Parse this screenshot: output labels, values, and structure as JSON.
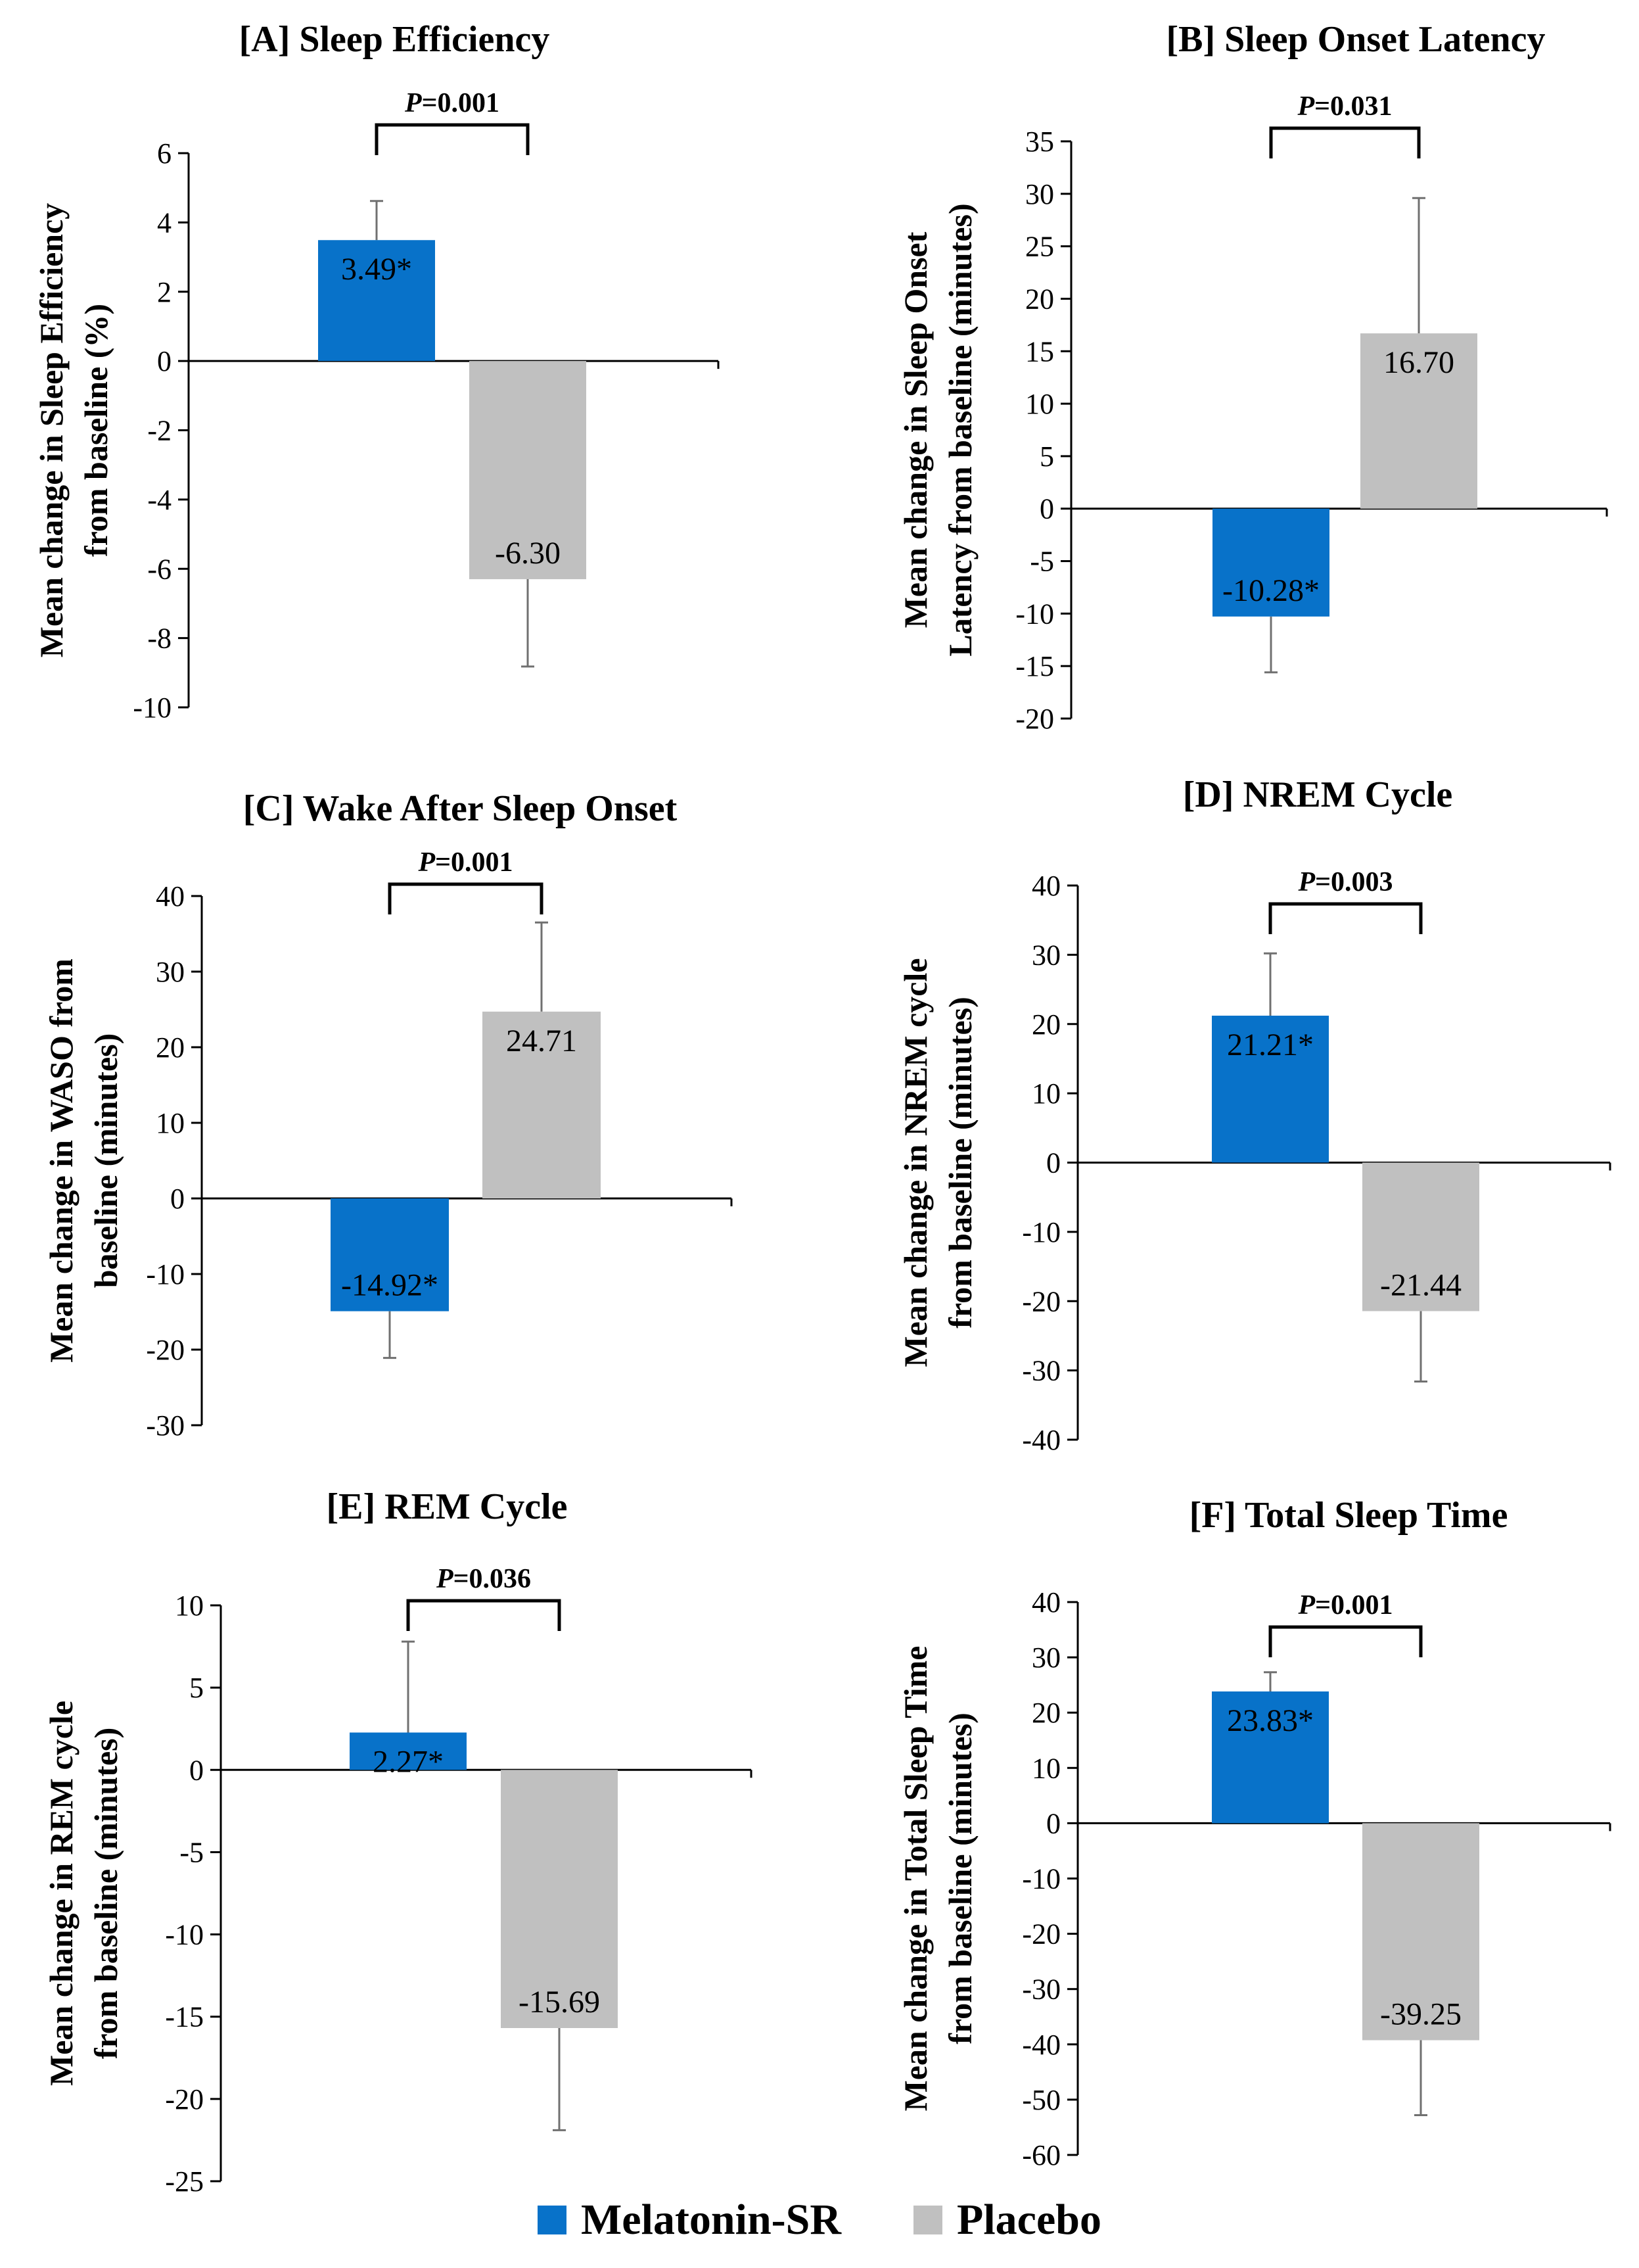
{
  "colors": {
    "melatonin": "#0872C9",
    "placebo": "#C0C0C0",
    "axis": "#000000",
    "errbar": "#707070"
  },
  "legend": [
    {
      "label": "Melatonin-SR",
      "color": "#0872C9"
    },
    {
      "label": "Placebo",
      "color": "#C0C0C0"
    }
  ],
  "chart_data": [
    {
      "type": "bar",
      "title": "[A] Sleep Efficiency",
      "ylabel_lines": [
        "Mean change in Sleep Efficiency",
        "from baseline  (%)"
      ],
      "series": [
        {
          "name": "Melatonin-SR",
          "value": 3.49,
          "label": "3.49*",
          "err_high": 4.62,
          "err_low": null
        },
        {
          "name": "Placebo",
          "value": -6.3,
          "label": "-6.30",
          "err_high": null,
          "err_low": -8.82
        }
      ],
      "p_label": "P",
      "p_value": "=0.001",
      "ylim": [
        -10,
        6
      ],
      "step": 2
    },
    {
      "type": "bar",
      "title": "[B]  Sleep Onset Latency",
      "ylabel_lines": [
        "Mean change in Sleep Onset",
        "Latency from baseline  (minutes)"
      ],
      "series": [
        {
          "name": "Melatonin-SR",
          "value": -10.28,
          "label": "-10.28*",
          "err_high": null,
          "err_low": -15.6
        },
        {
          "name": "Placebo",
          "value": 16.7,
          "label": "16.70",
          "err_high": 29.6,
          "err_low": null
        }
      ],
      "p_label": "P",
      "p_value": "=0.031",
      "ylim": [
        -20,
        35
      ],
      "step": 5
    },
    {
      "type": "bar",
      "title": "[C] Wake After Sleep Onset",
      "ylabel_lines": [
        "Mean change in WASO from",
        "baseline  (minutes)"
      ],
      "series": [
        {
          "name": "Melatonin-SR",
          "value": -14.92,
          "label": "-14.92*",
          "err_high": null,
          "err_low": -21.1
        },
        {
          "name": "Placebo",
          "value": 24.71,
          "label": "24.71",
          "err_high": 36.5,
          "err_low": null
        }
      ],
      "p_label": "P",
      "p_value": "=0.001",
      "ylim": [
        -30,
        40
      ],
      "step": 10
    },
    {
      "type": "bar",
      "title": "[D] NREM Cycle",
      "ylabel_lines": [
        "Mean change in NREM cycle",
        "from baseline  (minutes)"
      ],
      "series": [
        {
          "name": "Melatonin-SR",
          "value": 21.21,
          "label": "21.21*",
          "err_high": 30.2,
          "err_low": null
        },
        {
          "name": "Placebo",
          "value": -21.44,
          "label": "-21.44",
          "err_high": null,
          "err_low": -31.6
        }
      ],
      "p_label": "P",
      "p_value": "=0.003",
      "ylim": [
        -40,
        40
      ],
      "step": 10
    },
    {
      "type": "bar",
      "title": "[E]  REM Cycle",
      "ylabel_lines": [
        "Mean change in REM cycle",
        "from baseline  (minutes)"
      ],
      "series": [
        {
          "name": "Melatonin-SR",
          "value": 2.27,
          "label": "2.27*",
          "err_high": 7.8,
          "err_low": null
        },
        {
          "name": "Placebo",
          "value": -15.69,
          "label": "-15.69",
          "err_high": null,
          "err_low": -21.9
        }
      ],
      "p_label": "P",
      "p_value": "=0.036",
      "ylim": [
        -25,
        10
      ],
      "step": 5
    },
    {
      "type": "bar",
      "title": "[F] Total Sleep Time",
      "ylabel_lines": [
        "Mean change in Total Sleep Time",
        "from baseline  (minutes)"
      ],
      "series": [
        {
          "name": "Melatonin-SR",
          "value": 23.83,
          "label": "23.83*",
          "err_high": 27.3,
          "err_low": null
        },
        {
          "name": "Placebo",
          "value": -39.25,
          "label": "-39.25",
          "err_high": null,
          "err_low": -52.8
        }
      ],
      "p_label": "P",
      "p_value": "=0.001",
      "ylim": [
        -60,
        40
      ],
      "step": 10
    }
  ]
}
